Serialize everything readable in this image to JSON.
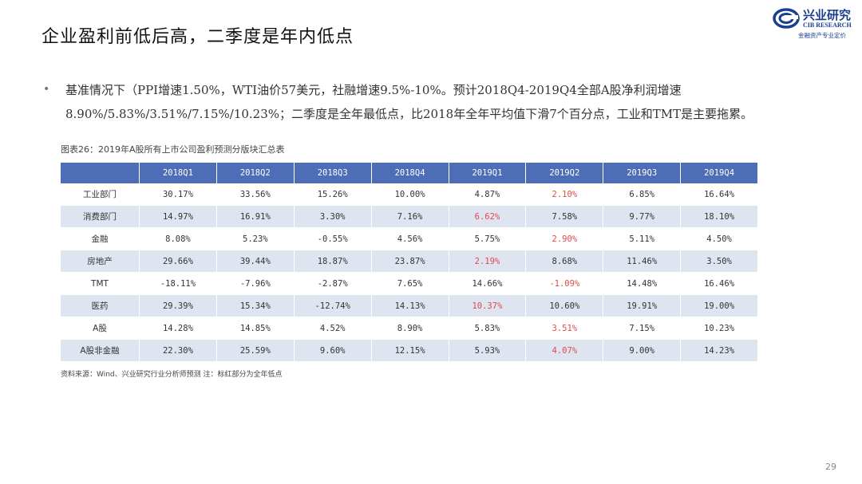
{
  "title": "企业盈利前低后高，二季度是年内低点",
  "logo": {
    "name": "兴业研究",
    "english": "CIB RESEARCH",
    "slogan": "金融资产专业定价",
    "brand_color": "#1b3f8f"
  },
  "bullet": {
    "marker": "•",
    "text": "基准情况下（PPI增速1.50%，WTI油价57美元，社融增速9.5%-10%。预计2018Q4-2019Q4全部A股净利润增速8.90%/5.83%/3.51%/7.15%/10.23%；二季度是全年最低点，比2018年全年平均值下滑7个百分点，工业和TMT是主要拖累。"
  },
  "table": {
    "caption": "图表26：2019年A股所有上市公司盈利预测分版块汇总表",
    "header_color": "#4d6db6",
    "stripe_color": "#dfe4f1",
    "highlight_color": "#e04a4a",
    "columns": [
      "",
      "2018Q1",
      "2018Q2",
      "2018Q3",
      "2018Q4",
      "2019Q1",
      "2019Q2",
      "2019Q3",
      "2019Q4"
    ],
    "rows": [
      {
        "label": "工业部门",
        "values": [
          "30.17%",
          "33.56%",
          "15.26%",
          "10.00%",
          "4.87%",
          "2.10%",
          "6.85%",
          "16.64%"
        ],
        "red_index": 5
      },
      {
        "label": "消费部门",
        "values": [
          "14.97%",
          "16.91%",
          "3.30%",
          "7.16%",
          "6.62%",
          "7.58%",
          "9.77%",
          "18.10%"
        ],
        "red_index": 4
      },
      {
        "label": "金融",
        "values": [
          "8.08%",
          "5.23%",
          "-0.55%",
          "4.56%",
          "5.75%",
          "2.90%",
          "5.11%",
          "4.50%"
        ],
        "red_index": 5
      },
      {
        "label": "房地产",
        "values": [
          "29.66%",
          "39.44%",
          "18.87%",
          "23.87%",
          "2.19%",
          "8.68%",
          "11.46%",
          "3.50%"
        ],
        "red_index": 4
      },
      {
        "label": "TMT",
        "values": [
          "-18.11%",
          "-7.96%",
          "-2.87%",
          "7.65%",
          "14.66%",
          "-1.09%",
          "14.48%",
          "16.46%"
        ],
        "red_index": 5
      },
      {
        "label": "医药",
        "values": [
          "29.39%",
          "15.34%",
          "-12.74%",
          "14.13%",
          "10.37%",
          "10.60%",
          "19.91%",
          "19.00%"
        ],
        "red_index": 4
      },
      {
        "label": "A股",
        "values": [
          "14.28%",
          "14.85%",
          "4.52%",
          "8.90%",
          "5.83%",
          "3.51%",
          "7.15%",
          "10.23%"
        ],
        "red_index": 5
      },
      {
        "label": "A股非金融",
        "values": [
          "22.30%",
          "25.59%",
          "9.60%",
          "12.15%",
          "5.93%",
          "4.07%",
          "9.00%",
          "14.23%"
        ],
        "red_index": 5
      }
    ]
  },
  "source": "资料来源：Wind、兴业研究行业分析师预测 注：标红部分为全年低点",
  "page_number": "29"
}
